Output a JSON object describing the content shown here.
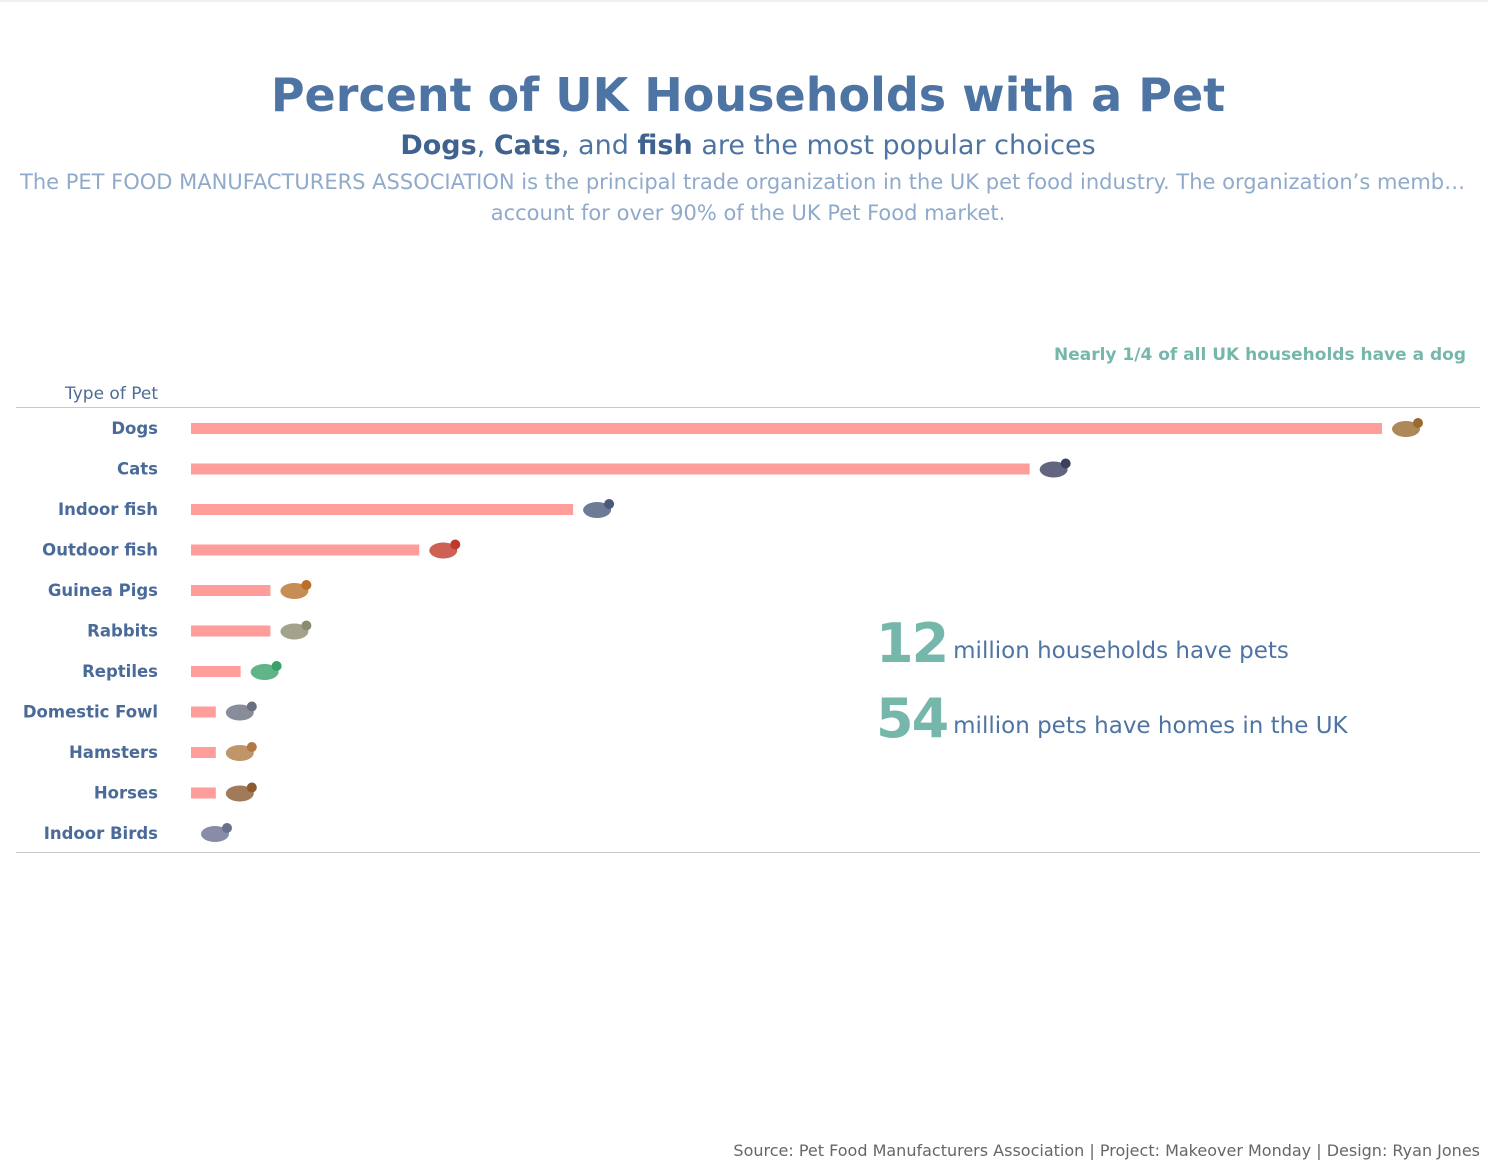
{
  "header": {
    "title": "Percent of UK Households with a Pet",
    "subtitle": {
      "dogs": "Dogs",
      "sep1": ", ",
      "cats": "Cats",
      "sep2": ", and ",
      "fish": "fish",
      "rest": " are the most popular choices"
    },
    "description_line1": "The PET FOOD MANUFACTURERS ASSOCIATION is the principal trade organization in the UK pet food industry. The organization’s members",
    "description_line2": "account for over 90% of the UK Pet Food market."
  },
  "annotation": "Nearly 1/4 of all UK households have a dog",
  "kpis": [
    {
      "number": "12",
      "text": "million households have pets"
    },
    {
      "number": "54",
      "text": "million pets have homes in the UK"
    }
  ],
  "footer": "Source: Pet Food Manufacturers Association | Project: Makeover Monday  | Design: Ryan Jones",
  "colors": {
    "bar": "#ff9d9a",
    "title": "#4e74a3",
    "accent": "#76b7ac"
  },
  "chart_data": {
    "type": "bar",
    "orientation": "horizontal",
    "title": "",
    "ylabel": "Type of Pet",
    "xlabel": "",
    "units": "percent of UK households",
    "xlim": [
      0,
      24
    ],
    "grid": false,
    "categories": [
      "Dogs",
      "Cats",
      "Indoor fish",
      "Outdoor fish",
      "Guinea Pigs",
      "Rabbits",
      "Reptiles",
      "Domestic Fowl",
      "Hamsters",
      "Horses",
      "Indoor Birds"
    ],
    "values": [
      24,
      16.9,
      7.7,
      4.6,
      1.6,
      1.6,
      1.0,
      0.5,
      0.5,
      0.5,
      0
    ],
    "icons": [
      "dog-icon",
      "cat-icon",
      "indoor-fish-icon",
      "outdoor-fish-icon",
      "guinea-pig-icon",
      "rabbit-icon",
      "reptile-icon",
      "domestic-fowl-icon",
      "hamster-icon",
      "horse-icon",
      "indoor-bird-icon"
    ]
  }
}
